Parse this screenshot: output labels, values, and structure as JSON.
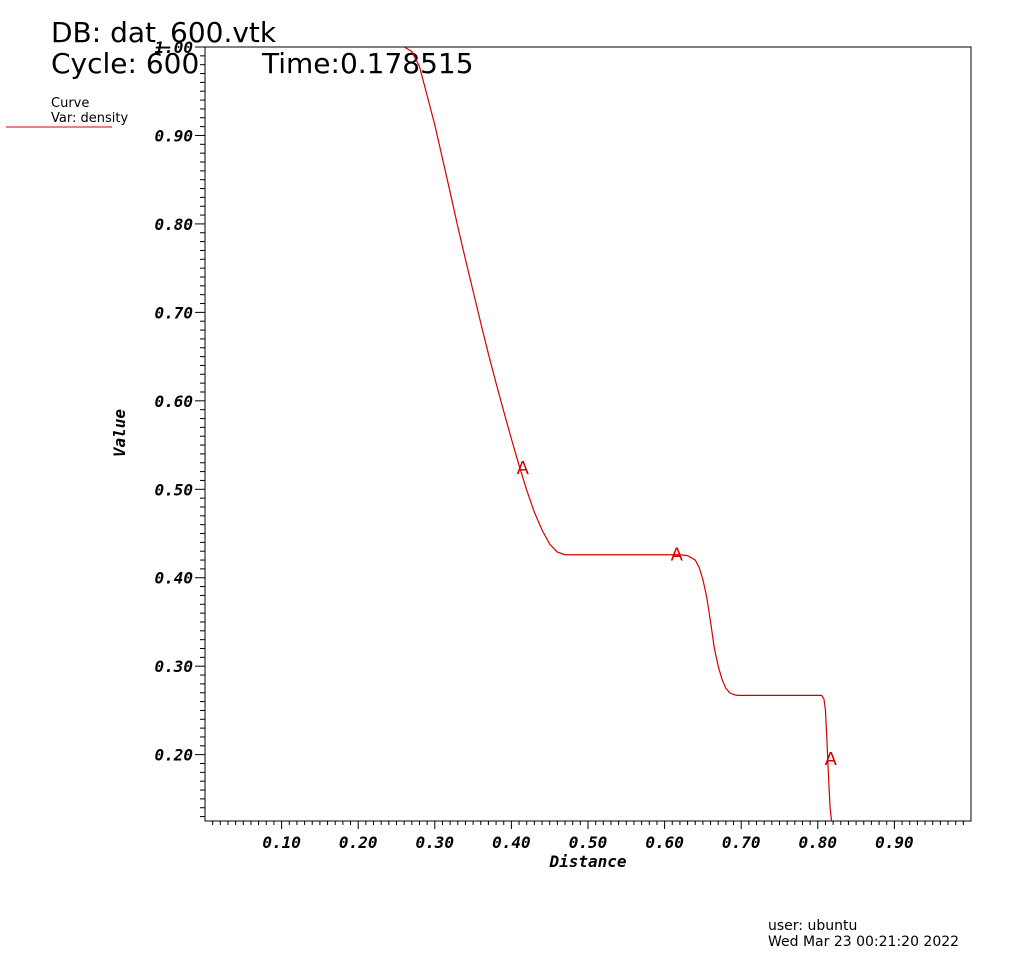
{
  "header": {
    "db_line": "DB: dat_600.vtk",
    "cycle_line": "Cycle: 600",
    "time_line": "Time:0.178515"
  },
  "legend": {
    "title": "Curve",
    "var": "Var: density",
    "color": "#d40000"
  },
  "footer": {
    "user": "user: ubuntu",
    "date": "Wed Mar 23 00:21:20 2022"
  },
  "chart_data": {
    "type": "line",
    "xlabel": "Distance",
    "ylabel": "Value",
    "xlim": [
      0.0,
      1.0
    ],
    "ylim": [
      0.125,
      1.0
    ],
    "x_ticks": [
      "0.10",
      "0.20",
      "0.30",
      "0.40",
      "0.50",
      "0.60",
      "0.70",
      "0.80",
      "0.90"
    ],
    "y_ticks": [
      "0.20",
      "0.30",
      "0.40",
      "0.50",
      "0.60",
      "0.70",
      "0.80",
      "0.90",
      "1.00"
    ],
    "series": [
      {
        "color": "#d40000",
        "marker_label": "A",
        "markers_x": [
          0.411,
          0.612,
          0.813
        ],
        "x": [
          0.26,
          0.27,
          0.28,
          0.29,
          0.3,
          0.31,
          0.32,
          0.33,
          0.34,
          0.35,
          0.36,
          0.37,
          0.38,
          0.39,
          0.4,
          0.41,
          0.42,
          0.43,
          0.44,
          0.45,
          0.46,
          0.47,
          0.48,
          0.488,
          0.495,
          0.5,
          0.55,
          0.6,
          0.62,
          0.63,
          0.64,
          0.645,
          0.65,
          0.655,
          0.66,
          0.665,
          0.67,
          0.675,
          0.68,
          0.685,
          0.69,
          0.695,
          0.7,
          0.75,
          0.8,
          0.805,
          0.808,
          0.81,
          0.812,
          0.814,
          0.816,
          0.818
        ],
        "y": [
          1.0,
          0.995,
          0.978,
          0.945,
          0.912,
          0.874,
          0.836,
          0.797,
          0.76,
          0.724,
          0.688,
          0.653,
          0.62,
          0.588,
          0.557,
          0.527,
          0.499,
          0.474,
          0.454,
          0.438,
          0.429,
          0.426,
          0.426,
          0.426,
          0.426,
          0.426,
          0.426,
          0.426,
          0.426,
          0.425,
          0.42,
          0.412,
          0.398,
          0.378,
          0.35,
          0.32,
          0.3,
          0.285,
          0.275,
          0.27,
          0.268,
          0.267,
          0.267,
          0.267,
          0.267,
          0.267,
          0.263,
          0.25,
          0.215,
          0.175,
          0.14,
          0.125
        ]
      }
    ]
  }
}
